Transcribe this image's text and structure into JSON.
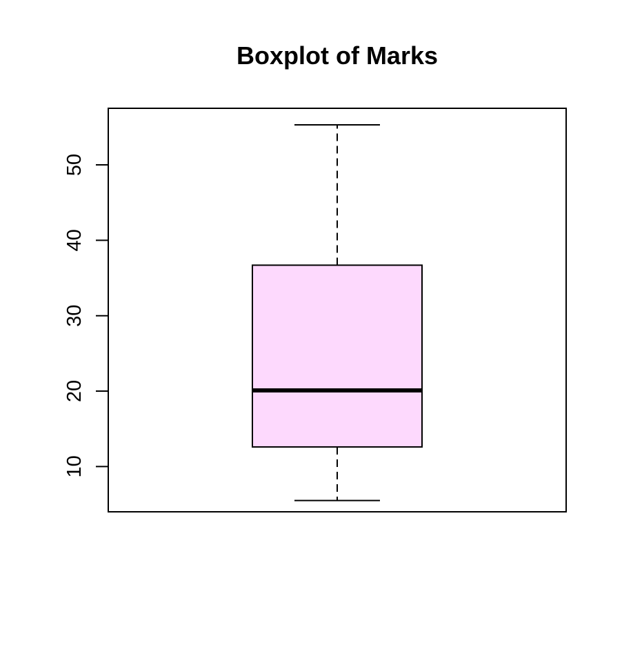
{
  "chart_data": {
    "type": "boxplot",
    "title": "Boxplot of Marks",
    "xlabel": "",
    "ylabel": "",
    "ylim": [
      4,
      57.5
    ],
    "yticks": [
      10,
      20,
      30,
      40,
      50
    ],
    "box": {
      "min": 5.5,
      "q1": 12.6,
      "median": 20.1,
      "q3": 36.7,
      "max": 55.3
    },
    "grid": false,
    "box_fill": "#FDD9FD",
    "line_color": "#000000"
  }
}
